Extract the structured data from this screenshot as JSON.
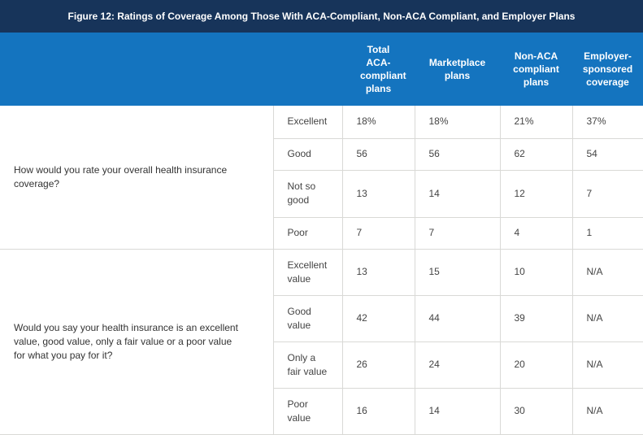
{
  "title": "Figure 12: Ratings of Coverage Among Those With ACA-Compliant, Non-ACA Compliant, and Employer Plans",
  "colors": {
    "title_bg": "#17345a",
    "header_bg": "#1474bf"
  },
  "columns": [
    "Total ACA-compliant plans",
    "Marketplace plans",
    "Non-ACA compliant plans",
    "Employer-sponsored coverage"
  ],
  "groups": [
    {
      "question": "How would you rate your overall health insurance coverage?",
      "rows": [
        {
          "label": "Excellent",
          "values": [
            "18%",
            "18%",
            "21%",
            "37%"
          ]
        },
        {
          "label": "Good",
          "values": [
            "56",
            "56",
            "62",
            "54"
          ]
        },
        {
          "label": "Not so good",
          "values": [
            "13",
            "14",
            "12",
            "7"
          ]
        },
        {
          "label": "Poor",
          "values": [
            "7",
            "7",
            "4",
            "1"
          ]
        }
      ]
    },
    {
      "question": "Would you say your health insurance is an excellent value, good value, only a fair value or a poor value for what you pay for it?",
      "rows": [
        {
          "label": "Excellent value",
          "values": [
            "13",
            "15",
            "10",
            "N/A"
          ]
        },
        {
          "label": "Good value",
          "values": [
            "42",
            "44",
            "39",
            "N/A"
          ]
        },
        {
          "label": "Only a fair value",
          "values": [
            "26",
            "24",
            "20",
            "N/A"
          ]
        },
        {
          "label": "Poor value",
          "values": [
            "16",
            "14",
            "30",
            "N/A"
          ]
        }
      ]
    }
  ]
}
